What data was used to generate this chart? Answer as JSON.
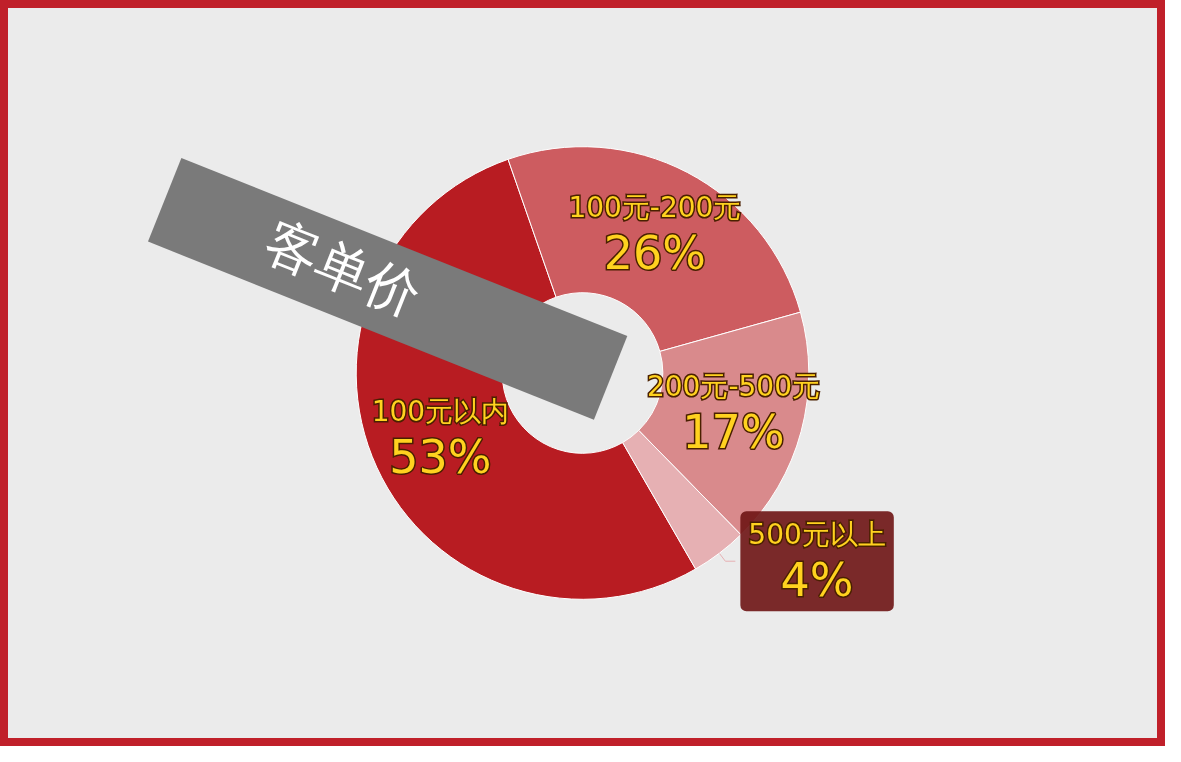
{
  "chart_data": {
    "type": "donut",
    "title": "客单价",
    "categories": [
      "100元以内",
      "100元-200元",
      "200元-500元",
      "500元以上"
    ],
    "values": [
      53,
      26,
      17,
      4
    ],
    "value_labels": [
      "53%",
      "26%",
      "17%",
      "4%"
    ],
    "colors": [
      "#b81c22",
      "#cd5c60",
      "#d98a8c",
      "#e6b0b3"
    ],
    "legend": false
  }
}
